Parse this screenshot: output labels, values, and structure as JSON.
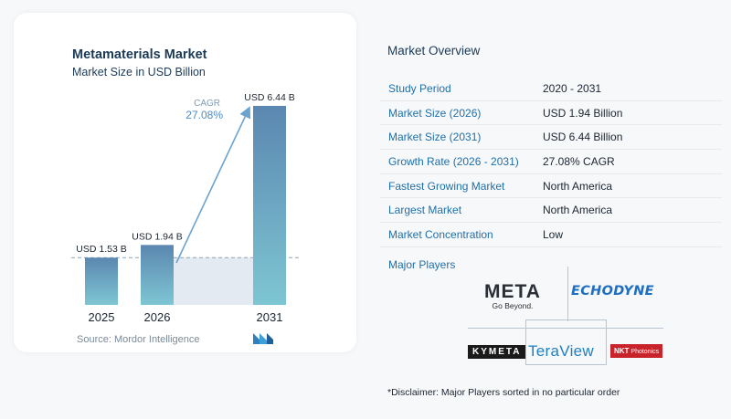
{
  "chart_data": {
    "type": "bar",
    "title": "Metamaterials Market",
    "subtitle": "Market Size in USD Billion",
    "categories": [
      "2025",
      "2026",
      "2031"
    ],
    "values": [
      1.53,
      1.94,
      6.44
    ],
    "data_labels": [
      "USD 1.53 B",
      "USD 1.94 B",
      "USD 6.44 B"
    ],
    "annotation": {
      "label": "CAGR",
      "value": "27.08%"
    },
    "ylim": [
      0,
      6.44
    ],
    "grid": false,
    "colors": {
      "bar_top": "#5b87b0",
      "bar_bottom": "#7ec6d3",
      "shade": "#e3eaf1",
      "arrow": "#6aa3cf"
    }
  },
  "source": {
    "label": "Source:",
    "value": "Mordor Intelligence"
  },
  "overview": {
    "title": "Market Overview",
    "rows": [
      {
        "key": "Study Period",
        "value": "2020 - 2031"
      },
      {
        "key": "Market Size (2026)",
        "value": "USD 1.94 Billion"
      },
      {
        "key": "Market Size (2031)",
        "value": "USD 6.44 Billion"
      },
      {
        "key": "Growth Rate (2026 - 2031)",
        "value": "27.08% CAGR"
      },
      {
        "key": "Fastest Growing Market",
        "value": "North America"
      },
      {
        "key": "Largest Market",
        "value": "North America"
      },
      {
        "key": "Market Concentration",
        "value": "Low"
      }
    ]
  },
  "players": {
    "title": "Major Players",
    "logos": {
      "meta": {
        "word": "META",
        "tagline": "Go Beyond."
      },
      "echodyne": "ECHODYNE",
      "kymeta": "KYMETA",
      "teraview": "TeraView",
      "nkt": {
        "word": "NKT",
        "sub": "Photonics"
      }
    }
  },
  "disclaimer": "*Disclaimer: Major Players sorted in no particular order"
}
